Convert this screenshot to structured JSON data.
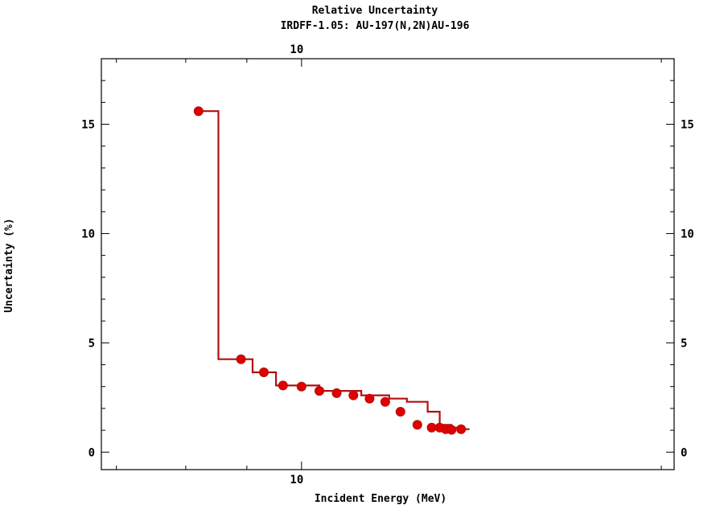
{
  "chart_data": {
    "type": "line",
    "step": true,
    "title": "Relative Uncertainty",
    "subtitle": "IRDFF-1.05: AU-197(N,2N)AU-196",
    "xlabel": "Incident Energy (MeV)",
    "ylabel": "Uncertainty (%)",
    "xscale": "log",
    "xlim": [
      6.8,
      20.5
    ],
    "ylim": [
      -0.8,
      18
    ],
    "x_ticks": [
      {
        "value": 10,
        "label": "10"
      }
    ],
    "x_ticks_top": [
      {
        "value": 10,
        "label": "10"
      }
    ],
    "x_minor_ticks": [
      7,
      8,
      9,
      20
    ],
    "y_ticks": [
      {
        "value": 0,
        "label": "0"
      },
      {
        "value": 5,
        "label": "5"
      },
      {
        "value": 10,
        "label": "10"
      },
      {
        "value": 15,
        "label": "15"
      }
    ],
    "y_minor_step": 1,
    "grid": false,
    "series": [
      {
        "color": "#b01010",
        "marker_color": "#e00000",
        "x": [
          8.2,
          8.9,
          9.3,
          9.65,
          10.0,
          10.35,
          10.7,
          11.05,
          11.4,
          11.75,
          12.1,
          12.5,
          12.85,
          13.05,
          13.2,
          13.35,
          13.6
        ],
        "values": [
          15.6,
          4.25,
          3.65,
          3.05,
          3.0,
          2.8,
          2.7,
          2.6,
          2.45,
          2.3,
          1.85,
          1.25,
          1.12,
          1.12,
          1.05,
          1.02,
          1.05
        ]
      }
    ],
    "step_edges": [
      8.2,
      8.52,
      9.1,
      9.52,
      10.35,
      11.22,
      11.84,
      12.25,
      12.75,
      13.05,
      13.35,
      13.6,
      13.82
    ],
    "step_levels": [
      15.6,
      4.25,
      3.65,
      3.05,
      2.8,
      2.6,
      2.45,
      2.3,
      1.85,
      1.25,
      1.12,
      1.05
    ]
  }
}
